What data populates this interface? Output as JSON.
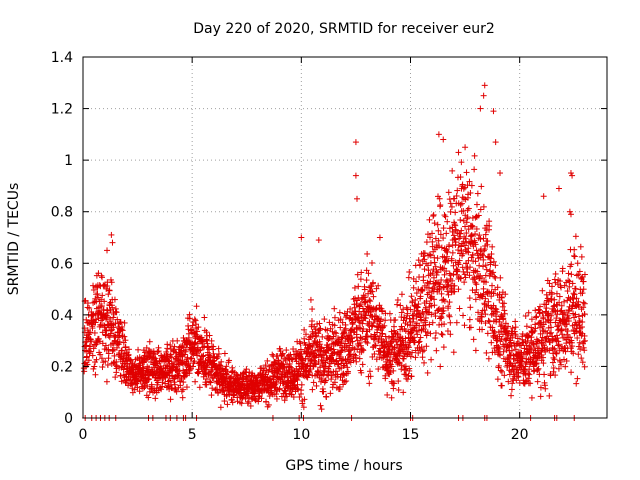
{
  "chart_data": {
    "type": "scatter",
    "title": "Day 220 of 2020, SRMTID for receiver eur2",
    "xlabel": "GPS time / hours",
    "ylabel": "SRMTID / TECUs",
    "xlim": [
      0,
      24
    ],
    "ylim": [
      0,
      1.4
    ],
    "x_ticks": [
      0,
      5,
      10,
      15,
      20
    ],
    "x_tick_labels": [
      "0",
      "5",
      "10",
      "15",
      "20"
    ],
    "y_ticks": [
      0,
      0.2,
      0.4,
      0.6,
      0.8,
      1.0,
      1.2,
      1.4
    ],
    "y_tick_labels": [
      "0",
      "0.2",
      "0.4",
      "0.6",
      "0.8",
      "1",
      "1.2",
      "1.4"
    ],
    "grid": true,
    "marker": "+",
    "series": [
      {
        "name": "SRMTID eur2",
        "color": "#e00000",
        "profile_x": [
          0.0,
          0.5,
          1.0,
          1.5,
          2.0,
          2.5,
          3.0,
          3.5,
          4.0,
          4.5,
          5.0,
          5.5,
          6.0,
          6.5,
          7.0,
          7.5,
          8.0,
          8.5,
          9.0,
          9.5,
          10.0,
          10.5,
          11.0,
          11.5,
          12.0,
          12.5,
          13.0,
          13.5,
          14.0,
          14.5,
          15.0,
          15.5,
          16.0,
          16.5,
          17.0,
          17.5,
          18.0,
          18.5,
          19.0,
          19.5,
          20.0,
          20.5,
          21.0,
          21.5,
          22.0,
          22.5,
          23.0
        ],
        "profile_median": [
          0.28,
          0.38,
          0.42,
          0.32,
          0.2,
          0.17,
          0.19,
          0.2,
          0.18,
          0.22,
          0.3,
          0.25,
          0.18,
          0.14,
          0.12,
          0.12,
          0.13,
          0.14,
          0.18,
          0.17,
          0.2,
          0.24,
          0.22,
          0.25,
          0.26,
          0.35,
          0.4,
          0.35,
          0.25,
          0.28,
          0.32,
          0.45,
          0.55,
          0.55,
          0.65,
          0.7,
          0.6,
          0.55,
          0.35,
          0.28,
          0.22,
          0.25,
          0.3,
          0.35,
          0.38,
          0.45,
          0.38
        ],
        "profile_spread": [
          0.1,
          0.12,
          0.14,
          0.1,
          0.06,
          0.05,
          0.06,
          0.06,
          0.06,
          0.07,
          0.09,
          0.08,
          0.06,
          0.05,
          0.04,
          0.04,
          0.04,
          0.05,
          0.06,
          0.06,
          0.08,
          0.1,
          0.1,
          0.1,
          0.1,
          0.12,
          0.14,
          0.12,
          0.1,
          0.1,
          0.12,
          0.16,
          0.2,
          0.2,
          0.2,
          0.2,
          0.2,
          0.18,
          0.14,
          0.1,
          0.08,
          0.1,
          0.12,
          0.14,
          0.14,
          0.16,
          0.14
        ],
        "outliers": [
          [
            0.6,
            0.48
          ],
          [
            1.1,
            0.65
          ],
          [
            1.3,
            0.71
          ],
          [
            1.35,
            0.68
          ],
          [
            12.5,
            1.07
          ],
          [
            12.5,
            0.94
          ],
          [
            12.55,
            0.85
          ],
          [
            13.6,
            0.7
          ],
          [
            10.0,
            0.7
          ],
          [
            10.8,
            0.69
          ],
          [
            16.3,
            1.1
          ],
          [
            16.5,
            1.08
          ],
          [
            17.2,
            1.03
          ],
          [
            17.5,
            1.05
          ],
          [
            18.2,
            1.2
          ],
          [
            18.35,
            1.25
          ],
          [
            18.4,
            1.29
          ],
          [
            18.8,
            1.19
          ],
          [
            18.9,
            1.07
          ],
          [
            19.1,
            0.95
          ],
          [
            21.1,
            0.86
          ],
          [
            21.8,
            0.89
          ],
          [
            22.35,
            0.95
          ],
          [
            22.4,
            0.94
          ],
          [
            22.3,
            0.8
          ],
          [
            22.35,
            0.79
          ]
        ],
        "zero_values_x": [
          0.1,
          0.4,
          0.6,
          0.8,
          1.0,
          1.2,
          1.5,
          3.0,
          3.2,
          3.8,
          4.0,
          4.3,
          4.6,
          4.7,
          5.2,
          8.7,
          9.9,
          10.1,
          12.3,
          15.0,
          15.1,
          17.2,
          17.4,
          18.4,
          18.5,
          20.5,
          21.6,
          21.7,
          22.5
        ],
        "point_count": 3400
      }
    ]
  }
}
